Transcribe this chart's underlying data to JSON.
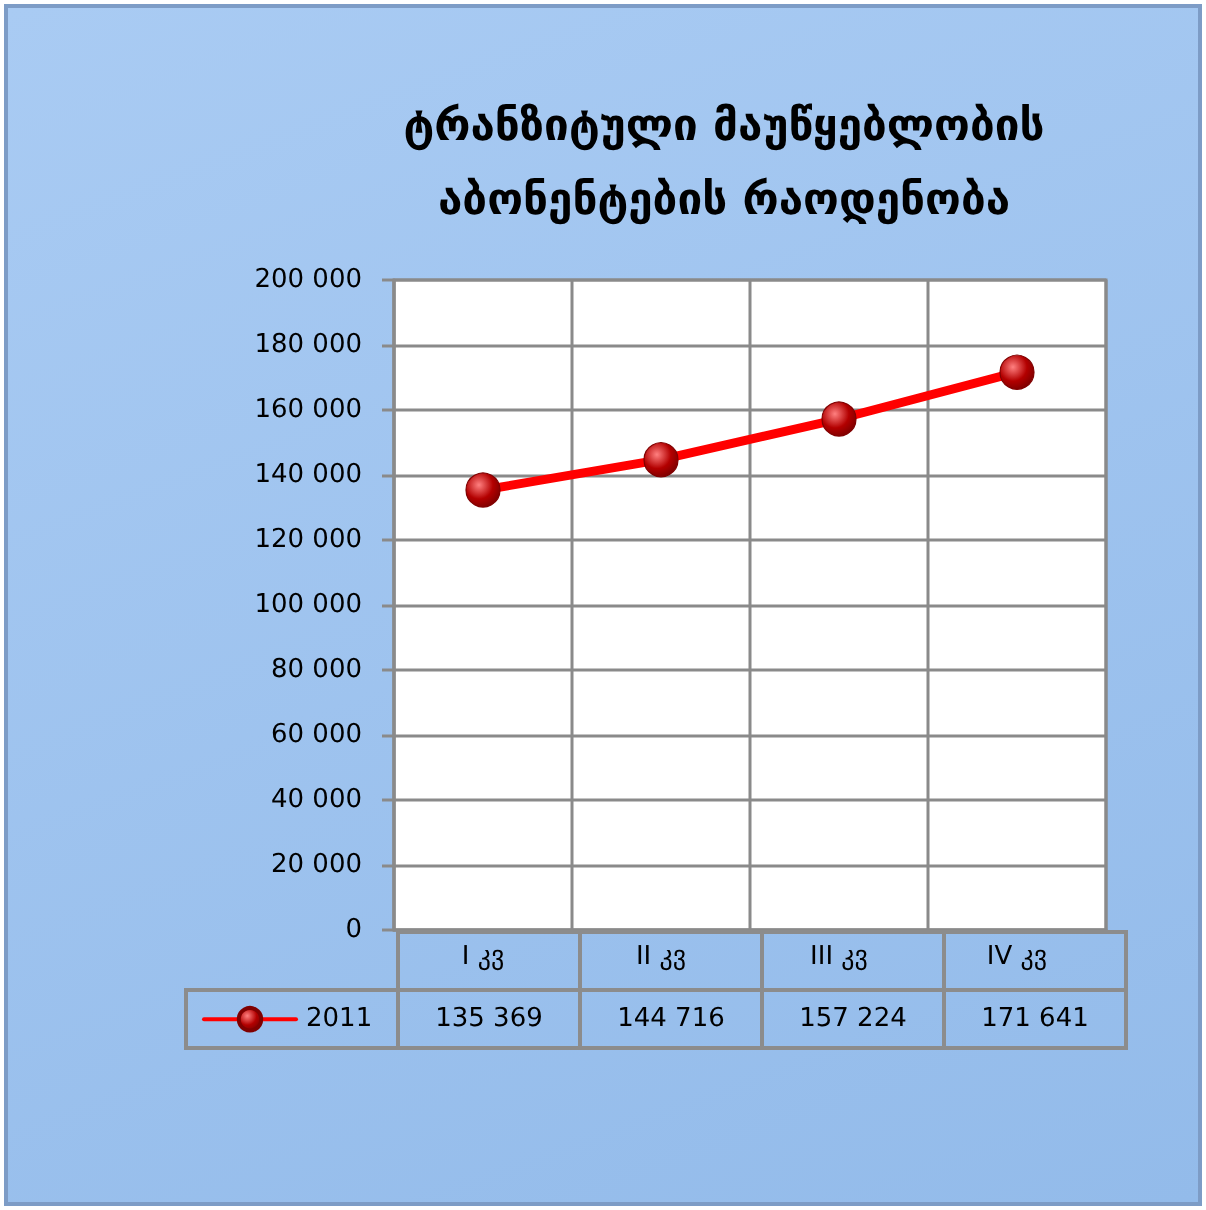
{
  "chart_data": {
    "type": "line",
    "title": "ტრანზიტული მაუწყებლობის\nაბონენტების რაოდენობა",
    "categories": [
      "I კვ",
      "II კვ",
      "III კვ",
      "IV კვ"
    ],
    "series": [
      {
        "name": "2011",
        "color": "#ff0000",
        "values": [
          135369,
          144716,
          157224,
          171641
        ],
        "value_labels": [
          "135 369",
          "144 716",
          "157 224",
          "171 641"
        ]
      }
    ],
    "ylim": [
      0,
      200000
    ],
    "yticks": [
      0,
      {
        "value": 20000,
        "label": "20 000"
      },
      {
        "value": 40000,
        "label": "40 000"
      },
      {
        "value": 60000,
        "label": "60 000"
      },
      {
        "value": 80000,
        "label": "80 000"
      },
      {
        "value": 100000,
        "label": "100 000"
      },
      {
        "value": 120000,
        "label": "120 000"
      },
      {
        "value": 140000,
        "label": "140 000"
      },
      {
        "value": 160000,
        "label": "160 000"
      },
      {
        "value": 180000,
        "label": "180 000"
      },
      {
        "value": 200000,
        "label": "200 000"
      }
    ],
    "grid": true,
    "legend": "bottom left",
    "marker": "circle",
    "line_style": "solid"
  }
}
